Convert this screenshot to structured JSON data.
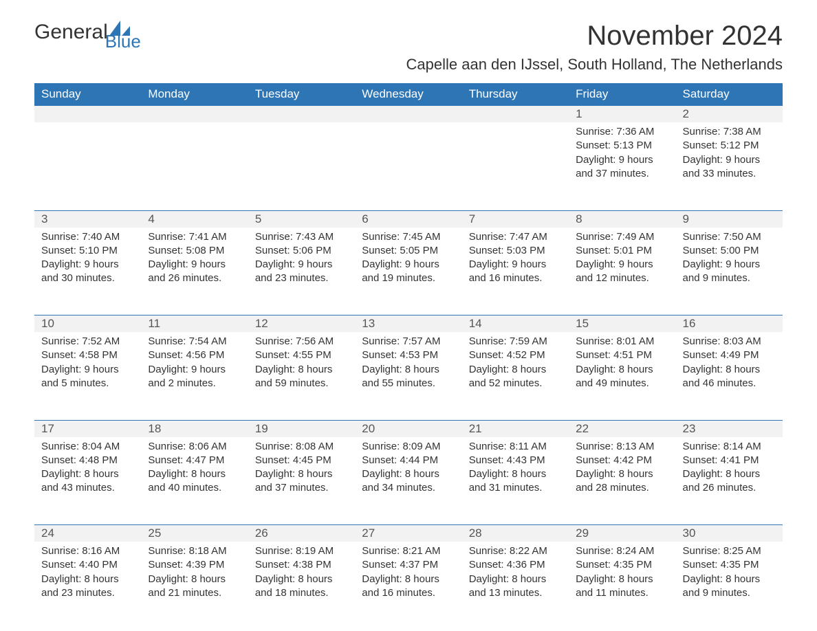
{
  "logo": {
    "text1": "General",
    "text2": "Blue",
    "icon_color": "#2e75b6"
  },
  "title": "November 2024",
  "location": "Capelle aan den IJssel, South Holland, The Netherlands",
  "colors": {
    "header_bg": "#2e75b6",
    "header_text": "#ffffff",
    "row_border": "#2e75b6",
    "daynum_bg": "#f2f2f2",
    "body_text": "#333333"
  },
  "day_headers": [
    "Sunday",
    "Monday",
    "Tuesday",
    "Wednesday",
    "Thursday",
    "Friday",
    "Saturday"
  ],
  "weeks": [
    [
      null,
      null,
      null,
      null,
      null,
      {
        "n": "1",
        "sunrise": "7:36 AM",
        "sunset": "5:13 PM",
        "dl1": "9 hours",
        "dl2": "and 37 minutes."
      },
      {
        "n": "2",
        "sunrise": "7:38 AM",
        "sunset": "5:12 PM",
        "dl1": "9 hours",
        "dl2": "and 33 minutes."
      }
    ],
    [
      {
        "n": "3",
        "sunrise": "7:40 AM",
        "sunset": "5:10 PM",
        "dl1": "9 hours",
        "dl2": "and 30 minutes."
      },
      {
        "n": "4",
        "sunrise": "7:41 AM",
        "sunset": "5:08 PM",
        "dl1": "9 hours",
        "dl2": "and 26 minutes."
      },
      {
        "n": "5",
        "sunrise": "7:43 AM",
        "sunset": "5:06 PM",
        "dl1": "9 hours",
        "dl2": "and 23 minutes."
      },
      {
        "n": "6",
        "sunrise": "7:45 AM",
        "sunset": "5:05 PM",
        "dl1": "9 hours",
        "dl2": "and 19 minutes."
      },
      {
        "n": "7",
        "sunrise": "7:47 AM",
        "sunset": "5:03 PM",
        "dl1": "9 hours",
        "dl2": "and 16 minutes."
      },
      {
        "n": "8",
        "sunrise": "7:49 AM",
        "sunset": "5:01 PM",
        "dl1": "9 hours",
        "dl2": "and 12 minutes."
      },
      {
        "n": "9",
        "sunrise": "7:50 AM",
        "sunset": "5:00 PM",
        "dl1": "9 hours",
        "dl2": "and 9 minutes."
      }
    ],
    [
      {
        "n": "10",
        "sunrise": "7:52 AM",
        "sunset": "4:58 PM",
        "dl1": "9 hours",
        "dl2": "and 5 minutes."
      },
      {
        "n": "11",
        "sunrise": "7:54 AM",
        "sunset": "4:56 PM",
        "dl1": "9 hours",
        "dl2": "and 2 minutes."
      },
      {
        "n": "12",
        "sunrise": "7:56 AM",
        "sunset": "4:55 PM",
        "dl1": "8 hours",
        "dl2": "and 59 minutes."
      },
      {
        "n": "13",
        "sunrise": "7:57 AM",
        "sunset": "4:53 PM",
        "dl1": "8 hours",
        "dl2": "and 55 minutes."
      },
      {
        "n": "14",
        "sunrise": "7:59 AM",
        "sunset": "4:52 PM",
        "dl1": "8 hours",
        "dl2": "and 52 minutes."
      },
      {
        "n": "15",
        "sunrise": "8:01 AM",
        "sunset": "4:51 PM",
        "dl1": "8 hours",
        "dl2": "and 49 minutes."
      },
      {
        "n": "16",
        "sunrise": "8:03 AM",
        "sunset": "4:49 PM",
        "dl1": "8 hours",
        "dl2": "and 46 minutes."
      }
    ],
    [
      {
        "n": "17",
        "sunrise": "8:04 AM",
        "sunset": "4:48 PM",
        "dl1": "8 hours",
        "dl2": "and 43 minutes."
      },
      {
        "n": "18",
        "sunrise": "8:06 AM",
        "sunset": "4:47 PM",
        "dl1": "8 hours",
        "dl2": "and 40 minutes."
      },
      {
        "n": "19",
        "sunrise": "8:08 AM",
        "sunset": "4:45 PM",
        "dl1": "8 hours",
        "dl2": "and 37 minutes."
      },
      {
        "n": "20",
        "sunrise": "8:09 AM",
        "sunset": "4:44 PM",
        "dl1": "8 hours",
        "dl2": "and 34 minutes."
      },
      {
        "n": "21",
        "sunrise": "8:11 AM",
        "sunset": "4:43 PM",
        "dl1": "8 hours",
        "dl2": "and 31 minutes."
      },
      {
        "n": "22",
        "sunrise": "8:13 AM",
        "sunset": "4:42 PM",
        "dl1": "8 hours",
        "dl2": "and 28 minutes."
      },
      {
        "n": "23",
        "sunrise": "8:14 AM",
        "sunset": "4:41 PM",
        "dl1": "8 hours",
        "dl2": "and 26 minutes."
      }
    ],
    [
      {
        "n": "24",
        "sunrise": "8:16 AM",
        "sunset": "4:40 PM",
        "dl1": "8 hours",
        "dl2": "and 23 minutes."
      },
      {
        "n": "25",
        "sunrise": "8:18 AM",
        "sunset": "4:39 PM",
        "dl1": "8 hours",
        "dl2": "and 21 minutes."
      },
      {
        "n": "26",
        "sunrise": "8:19 AM",
        "sunset": "4:38 PM",
        "dl1": "8 hours",
        "dl2": "and 18 minutes."
      },
      {
        "n": "27",
        "sunrise": "8:21 AM",
        "sunset": "4:37 PM",
        "dl1": "8 hours",
        "dl2": "and 16 minutes."
      },
      {
        "n": "28",
        "sunrise": "8:22 AM",
        "sunset": "4:36 PM",
        "dl1": "8 hours",
        "dl2": "and 13 minutes."
      },
      {
        "n": "29",
        "sunrise": "8:24 AM",
        "sunset": "4:35 PM",
        "dl1": "8 hours",
        "dl2": "and 11 minutes."
      },
      {
        "n": "30",
        "sunrise": "8:25 AM",
        "sunset": "4:35 PM",
        "dl1": "8 hours",
        "dl2": "and 9 minutes."
      }
    ]
  ],
  "labels": {
    "sunrise": "Sunrise: ",
    "sunset": "Sunset: ",
    "daylight": "Daylight: "
  }
}
